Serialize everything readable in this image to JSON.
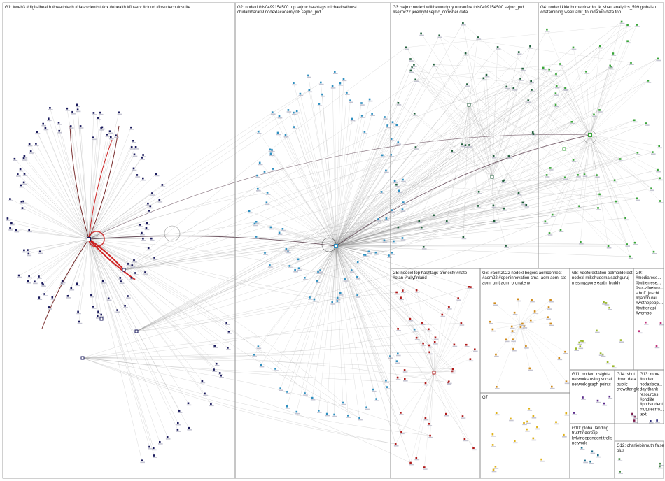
{
  "colors": {
    "background": "#ffffff",
    "frame": "#8a8a8a",
    "edge": "#8c8c8c",
    "highlight_edge": "#cc1111",
    "dark_edge": "#6b1a1a",
    "node_shadow": "#b8b8c8"
  },
  "groups": [
    {
      "id": "G1",
      "color": "#1a1a5c",
      "lines": [
        "G1: #web3 #digitalhealth #healthtech #datascientist #cx #ehealth #finserv #cloud #insurtech #csuite"
      ]
    },
    {
      "id": "G2",
      "color": "#2e8fc0",
      "lines": [
        "G2: nodexl this0499154500 top sejmc hashtags michaelbathurst",
        "chidambara09 nodexlacademy 08 sejmc_prd"
      ]
    },
    {
      "id": "G3",
      "color": "#1f5e3a",
      "lines": [
        "G3: sejmc nodexl willthewordguy uncanfire this0499154500 sejmc_prd",
        "#sejmc22 jeremyhl sejmc_comsher data"
      ]
    },
    {
      "id": "G4",
      "color": "#3aa63a",
      "lines": [
        "G4: nodexl kirkdborne ricardo_lk_shau analytics_599 globalsu",
        "#datamining week amr_foundation data top"
      ]
    },
    {
      "id": "G5",
      "color": "#b01a1a",
      "lines": [
        "G5: nodexl top hashtags amnesty #nato",
        "#otan #rallyfinland"
      ]
    },
    {
      "id": "G6",
      "color": "#d08a1a",
      "lines": [
        "G6: #aom2022 nodexl bogers aomconnect",
        "#aom22 #openinnovation cma_aom aom_ste",
        "aom_omt aom_orgnatenv"
      ]
    },
    {
      "id": "G7",
      "color": "#e0b21a",
      "lines": [
        "G7"
      ]
    },
    {
      "id": "G8",
      "color": "#9ab82a",
      "lines": [
        "G8: #deforestation palmoildetect",
        "nodexl mikehudema sadhguruj",
        "mssingapore earth_buddy_"
      ]
    },
    {
      "id": "G9",
      "color": "#c0307a",
      "lines": [
        "G9:",
        "#mediarese...",
        "#twitterrese...",
        "#socialnetwo...",
        "sthoff_joschi...",
        "#qanon #ai",
        "#wethepeopl...",
        "#twitter api",
        "#wombo"
      ]
    },
    {
      "id": "G10",
      "color": "#1a6a8a",
      "lines": [
        "G10: globa_landing",
        "truthfinderexp",
        "kylvindependent trolls",
        "network"
      ]
    },
    {
      "id": "G11",
      "color": "#5a2a8a",
      "lines": [
        "G11: nodexl insights",
        "networks using social",
        "network graph points"
      ]
    },
    {
      "id": "G12",
      "color": "#4a8a4a",
      "lines": [
        "G12: charliebismuth false",
        "plus"
      ]
    },
    {
      "id": "G13",
      "color": "#2a2a7a",
      "lines": [
        "G13: more",
        "#nodexl",
        "nodexlaca...",
        "day thank",
        "resources",
        "#phdlife",
        "#phdstudent",
        "#futuresrro...",
        "text"
      ]
    },
    {
      "id": "G14",
      "color": "#7a1a4a",
      "lines": [
        "G14: shut",
        "down data",
        "public",
        "crowdtangle"
      ]
    }
  ]
}
